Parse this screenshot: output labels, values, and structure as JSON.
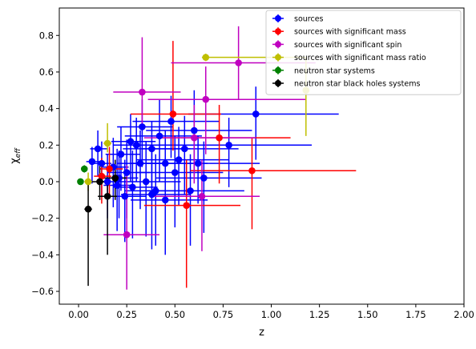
{
  "chart_data": {
    "type": "scatter",
    "title": "",
    "xlabel": "z",
    "ylabel": "χ_eff",
    "ylabel_main": "χ",
    "ylabel_sub": "eff",
    "xlim": [
      -0.1,
      2.0
    ],
    "ylim": [
      -0.67,
      0.95
    ],
    "x_ticks": [
      0.0,
      0.25,
      0.5,
      0.75,
      1.0,
      1.25,
      1.5,
      1.75,
      2.0
    ],
    "x_tick_labels": [
      "0.00",
      "0.25",
      "0.50",
      "0.75",
      "1.00",
      "1.25",
      "1.50",
      "1.75",
      "2.00"
    ],
    "y_ticks": [
      -0.6,
      -0.4,
      -0.2,
      0.0,
      0.2,
      0.4,
      0.6,
      0.8
    ],
    "y_tick_labels": [
      "−0.6",
      "−0.4",
      "−0.2",
      "0.0",
      "0.2",
      "0.4",
      "0.6",
      "0.8"
    ],
    "grid": false,
    "legend_position": "top-right",
    "series": [
      {
        "name": "sources",
        "color": "#0000ff",
        "points": [
          {
            "x": 0.92,
            "y": 0.37,
            "xerr": [
              0.35,
              0.43
            ],
            "yerr": [
              0.25,
              0.15
            ]
          },
          {
            "x": 0.78,
            "y": 0.2,
            "xerr": [
              0.33,
              0.43
            ],
            "yerr": [
              0.23,
              0.15
            ]
          },
          {
            "x": 0.6,
            "y": 0.28,
            "xerr": [
              0.25,
              0.3
            ],
            "yerr": [
              0.25,
              0.22
            ]
          },
          {
            "x": 0.62,
            "y": 0.1,
            "xerr": [
              0.27,
              0.32
            ],
            "yerr": [
              0.22,
              0.15
            ]
          },
          {
            "x": 0.55,
            "y": 0.18,
            "xerr": [
              0.22,
              0.28
            ],
            "yerr": [
              0.25,
              0.18
            ]
          },
          {
            "x": 0.5,
            "y": 0.05,
            "xerr": [
              0.2,
              0.25
            ],
            "yerr": [
              0.3,
              0.2
            ]
          },
          {
            "x": 0.48,
            "y": 0.33,
            "xerr": [
              0.2,
              0.25
            ],
            "yerr": [
              0.2,
              0.14
            ]
          },
          {
            "x": 0.45,
            "y": 0.1,
            "xerr": [
              0.18,
              0.22
            ],
            "yerr": [
              0.25,
              0.18
            ]
          },
          {
            "x": 0.4,
            "y": -0.05,
            "xerr": [
              0.16,
              0.2
            ],
            "yerr": [
              0.3,
              0.2
            ]
          },
          {
            "x": 0.38,
            "y": 0.18,
            "xerr": [
              0.15,
              0.2
            ],
            "yerr": [
              0.22,
              0.15
            ]
          },
          {
            "x": 0.35,
            "y": 0.0,
            "xerr": [
              0.14,
              0.18
            ],
            "yerr": [
              0.3,
              0.22
            ]
          },
          {
            "x": 0.32,
            "y": 0.1,
            "xerr": [
              0.12,
              0.15
            ],
            "yerr": [
              0.25,
              0.18
            ]
          },
          {
            "x": 0.3,
            "y": 0.2,
            "xerr": [
              0.12,
              0.15
            ],
            "yerr": [
              0.2,
              0.15
            ]
          },
          {
            "x": 0.28,
            "y": -0.03,
            "xerr": [
              0.1,
              0.13
            ],
            "yerr": [
              0.28,
              0.2
            ]
          },
          {
            "x": 0.25,
            "y": 0.05,
            "xerr": [
              0.1,
              0.12
            ],
            "yerr": [
              0.25,
              0.18
            ]
          },
          {
            "x": 0.22,
            "y": 0.15,
            "xerr": [
              0.08,
              0.1
            ],
            "yerr": [
              0.2,
              0.15
            ]
          },
          {
            "x": 0.2,
            "y": -0.02,
            "xerr": [
              0.07,
              0.09
            ],
            "yerr": [
              0.25,
              0.2
            ]
          },
          {
            "x": 0.18,
            "y": 0.08,
            "xerr": [
              0.06,
              0.08
            ],
            "yerr": [
              0.22,
              0.16
            ]
          },
          {
            "x": 0.15,
            "y": 0.0,
            "xerr": [
              0.05,
              0.07
            ],
            "yerr": [
              0.2,
              0.15
            ]
          },
          {
            "x": 0.12,
            "y": 0.1,
            "xerr": [
              0.04,
              0.05
            ],
            "yerr": [
              0.18,
              0.12
            ]
          },
          {
            "x": 0.1,
            "y": 0.18,
            "xerr": [
              0.04,
              0.05
            ],
            "yerr": [
              0.15,
              0.1
            ]
          },
          {
            "x": 0.07,
            "y": 0.11,
            "xerr": [
              0.03,
              0.04
            ],
            "yerr": [
              0.12,
              0.08
            ]
          },
          {
            "x": 0.38,
            "y": -0.07,
            "xerr": [
              0.16,
              0.2
            ],
            "yerr": [
              0.3,
              0.25
            ]
          },
          {
            "x": 0.42,
            "y": 0.25,
            "xerr": [
              0.18,
              0.22
            ],
            "yerr": [
              0.25,
              0.2
            ]
          },
          {
            "x": 0.58,
            "y": -0.05,
            "xerr": [
              0.22,
              0.28
            ],
            "yerr": [
              0.3,
              0.2
            ]
          },
          {
            "x": 0.52,
            "y": 0.12,
            "xerr": [
              0.22,
              0.26
            ],
            "yerr": [
              0.25,
              0.18
            ]
          },
          {
            "x": 0.65,
            "y": 0.02,
            "xerr": [
              0.25,
              0.3
            ],
            "yerr": [
              0.3,
              0.2
            ]
          },
          {
            "x": 0.45,
            "y": -0.1,
            "xerr": [
              0.18,
              0.22
            ],
            "yerr": [
              0.3,
              0.22
            ]
          },
          {
            "x": 0.27,
            "y": 0.22,
            "xerr": [
              0.1,
              0.13
            ],
            "yerr": [
              0.22,
              0.15
            ]
          },
          {
            "x": 0.33,
            "y": 0.3,
            "xerr": [
              0.13,
              0.16
            ],
            "yerr": [
              0.22,
              0.15
            ]
          },
          {
            "x": 0.24,
            "y": -0.08,
            "xerr": [
              0.09,
              0.11
            ],
            "yerr": [
              0.25,
              0.2
            ]
          },
          {
            "x": 0.21,
            "y": 0.02,
            "xerr": [
              0.08,
              0.1
            ],
            "yerr": [
              0.22,
              0.15
            ]
          }
        ]
      },
      {
        "name": "sources with significant mass",
        "color": "#ff0000",
        "points": [
          {
            "x": 0.49,
            "y": 0.37,
            "xerr": [
              0.22,
              0.25
            ],
            "yerr": [
              0.2,
              0.4
            ]
          },
          {
            "x": 0.73,
            "y": 0.24,
            "xerr": [
              0.3,
              0.37
            ],
            "yerr": [
              0.25,
              0.18
            ]
          },
          {
            "x": 0.9,
            "y": 0.06,
            "xerr": [
              0.32,
              0.54
            ],
            "yerr": [
              0.32,
              0.18
            ]
          },
          {
            "x": 0.56,
            "y": -0.13,
            "xerr": [
              0.22,
              0.28
            ],
            "yerr": [
              0.45,
              0.25
            ]
          },
          {
            "x": 0.16,
            "y": 0.07,
            "xerr": [
              0.05,
              0.07
            ],
            "yerr": [
              0.15,
              0.12
            ]
          },
          {
            "x": 0.12,
            "y": 0.03,
            "xerr": [
              0.04,
              0.05
            ],
            "yerr": [
              0.15,
              0.1
            ]
          }
        ]
      },
      {
        "name": "sources with significant spin",
        "color": "#c000c0",
        "points": [
          {
            "x": 0.83,
            "y": 0.65,
            "xerr": [
              0.35,
              0.4
            ],
            "yerr": [
              0.2,
              0.2
            ]
          },
          {
            "x": 0.66,
            "y": 0.45,
            "xerr": [
              0.3,
              0.52
            ],
            "yerr": [
              0.3,
              0.18
            ]
          },
          {
            "x": 0.33,
            "y": 0.49,
            "xerr": [
              0.15,
              0.2
            ],
            "yerr": [
              0.2,
              0.3
            ]
          },
          {
            "x": 0.64,
            "y": -0.08,
            "xerr": [
              0.25,
              0.3
            ],
            "yerr": [
              0.3,
              0.2
            ]
          },
          {
            "x": 0.25,
            "y": -0.29,
            "xerr": [
              0.12,
              0.17
            ],
            "yerr": [
              0.3,
              0.38
            ]
          },
          {
            "x": 0.6,
            "y": 0.24,
            "xerr": [
              0.26,
              0.32
            ],
            "yerr": [
              0.25,
              0.18
            ]
          }
        ]
      },
      {
        "name": "sources with significant mass ratio",
        "color": "#bfbf00",
        "points": [
          {
            "x": 0.66,
            "y": 0.68,
            "xerr": [
              0.02,
              0.52
            ],
            "yerr": [
              0.02,
              0.02
            ]
          },
          {
            "x": 1.18,
            "y": 0.5,
            "xerr": [
              0.0,
              0.0
            ],
            "yerr": [
              0.25,
              0.18
            ]
          },
          {
            "x": 0.15,
            "y": 0.21,
            "xerr": [
              0.02,
              0.02
            ],
            "yerr": [
              0.05,
              0.11
            ]
          },
          {
            "x": 0.05,
            "y": 0.0,
            "xerr": [
              0.02,
              0.02
            ],
            "yerr": [
              0.05,
              0.05
            ]
          }
        ]
      },
      {
        "name": "neutron star systems",
        "color": "#008000",
        "points": [
          {
            "x": 0.01,
            "y": 0.0,
            "xerr": [
              0.005,
              0.005
            ],
            "yerr": [
              0.01,
              0.01
            ]
          },
          {
            "x": 0.03,
            "y": 0.07,
            "xerr": [
              0.01,
              0.01
            ],
            "yerr": [
              0.02,
              0.02
            ]
          }
        ]
      },
      {
        "name": "neutron star black holes systems",
        "color": "#000000",
        "points": [
          {
            "x": 0.05,
            "y": -0.15,
            "xerr": [
              0.02,
              0.02
            ],
            "yerr": [
              0.42,
              0.15
            ]
          },
          {
            "x": 0.15,
            "y": -0.08,
            "xerr": [
              0.05,
              0.05
            ],
            "yerr": [
              0.32,
              0.1
            ]
          },
          {
            "x": 0.11,
            "y": 0.0,
            "xerr": [
              0.04,
              0.04
            ],
            "yerr": [
              0.1,
              0.1
            ]
          },
          {
            "x": 0.19,
            "y": 0.02,
            "xerr": [
              0.06,
              0.06
            ],
            "yerr": [
              0.12,
              0.1
            ]
          }
        ]
      }
    ]
  }
}
